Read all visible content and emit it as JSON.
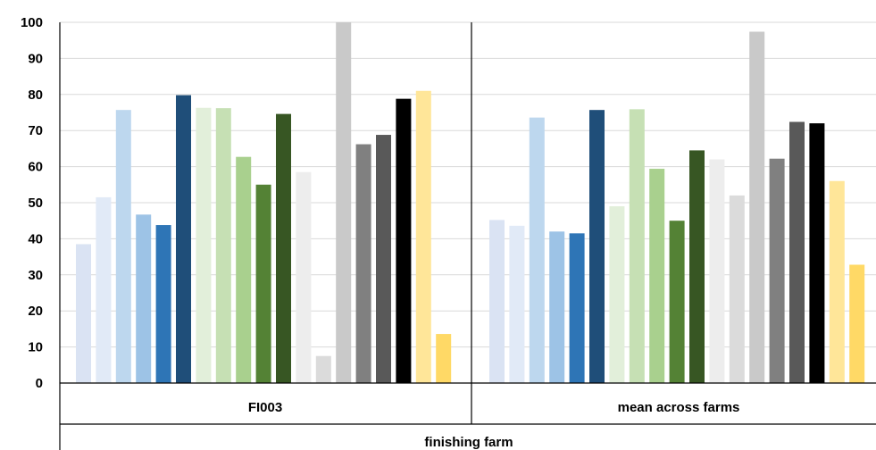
{
  "chart_data": {
    "type": "bar",
    "ylim": [
      0,
      100
    ],
    "yticks": [
      0,
      10,
      20,
      30,
      40,
      50,
      60,
      70,
      80,
      90,
      100
    ],
    "grid": true,
    "xlabel": "finishing farm",
    "ylabel": "",
    "categories": [
      "FI003",
      "mean across farms"
    ],
    "bar_colors": [
      "#dae3f3",
      "#e1eaf7",
      "#bdd7ee",
      "#9dc3e6",
      "#2e75b6",
      "#1f4e79",
      "#e2efda",
      "#c6e0b4",
      "#a9d08e",
      "#548235",
      "#375623",
      "#ededed",
      "#dbdbdb",
      "#c9c9c9",
      "#808080",
      "#595959",
      "#000000",
      "#ffe699",
      "#ffd966"
    ],
    "values": [
      [
        38.5,
        51.5,
        75.7,
        46.7,
        43.8,
        79.8,
        76.3,
        76.2,
        62.7,
        55.0,
        74.6,
        58.5,
        7.5,
        100.0,
        66.2,
        68.8,
        78.8,
        81.0,
        13.6
      ],
      [
        45.2,
        43.6,
        73.6,
        42.0,
        41.5,
        75.7,
        49.0,
        75.9,
        59.4,
        45.0,
        64.5,
        62.0,
        52.0,
        97.4,
        62.2,
        72.4,
        72.0,
        56.0,
        32.8
      ]
    ]
  }
}
